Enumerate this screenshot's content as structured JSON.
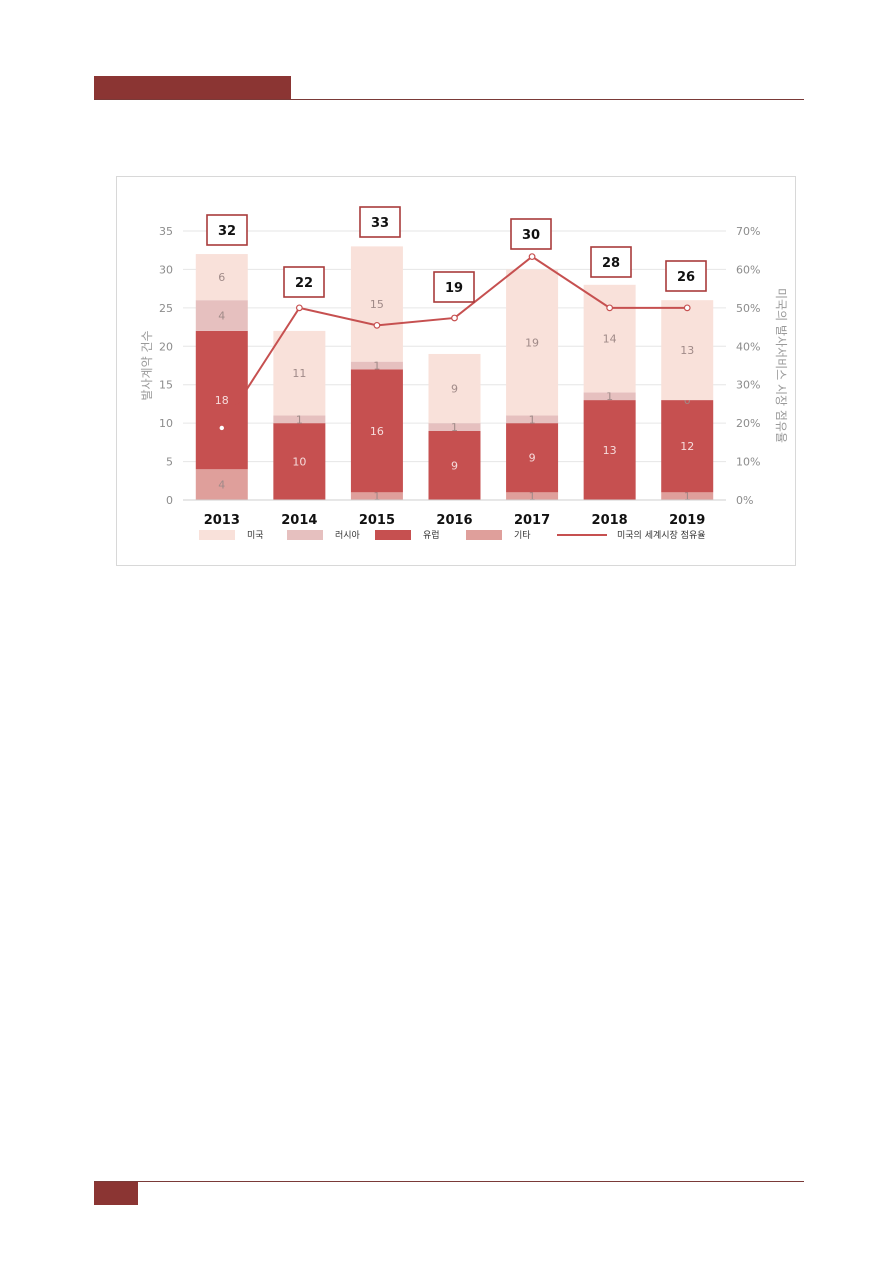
{
  "chart_data": {
    "type": "bar",
    "stacked": true,
    "categories": [
      "2013",
      "2014",
      "2015",
      "2016",
      "2017",
      "2018",
      "2019"
    ],
    "series": [
      {
        "name": "기타",
        "values": [
          4,
          0,
          1,
          0,
          1,
          0,
          1
        ],
        "labels": [
          "4",
          "",
          "1",
          "",
          "1",
          "",
          "1"
        ],
        "color": "#df9f9b"
      },
      {
        "name": "유럽",
        "values": [
          18,
          10,
          16,
          9,
          9,
          13,
          12
        ],
        "labels": [
          "18",
          "10",
          "16",
          "9",
          "9",
          "13",
          "12"
        ],
        "color": "#c65050"
      },
      {
        "name": "러시아",
        "values": [
          4,
          1,
          1,
          1,
          1,
          1,
          0
        ],
        "labels": [
          "4",
          "1",
          "1",
          "1",
          "1",
          "1",
          "0"
        ],
        "color": "#e6c0bf"
      },
      {
        "name": "미국",
        "values": [
          6,
          11,
          15,
          9,
          19,
          14,
          13
        ],
        "labels": [
          "6",
          "11",
          "15",
          "9",
          "19",
          "14",
          "13"
        ],
        "color": "#f9e1da"
      }
    ],
    "totals": [
      "32",
      "22",
      "33",
      "19",
      "30",
      "28",
      "26"
    ],
    "line_series": {
      "name": "미국의 세계시장 점유율",
      "values": [
        0.1875,
        0.5,
        0.4545,
        0.4737,
        0.6333,
        0.5,
        0.5
      ],
      "color": "#c65050"
    },
    "ylabel": "발사계약 건수",
    "y2label": "미국의 발사서비스 시장 점유율",
    "ylim": [
      0,
      35
    ],
    "y2lim": [
      0,
      0.7
    ],
    "yticks": [
      "0",
      "5",
      "10",
      "15",
      "20",
      "25",
      "30",
      "35"
    ],
    "y2ticks": [
      "0%",
      "10%",
      "20%",
      "30%",
      "40%",
      "50%",
      "60%",
      "70%"
    ],
    "grid": true,
    "legend_position": "bottom",
    "legend": [
      "미국",
      "러시아",
      "유럽",
      "기타",
      "미국의 세계시장 점유율"
    ]
  },
  "page": {
    "accent_color": "#8b3533"
  }
}
